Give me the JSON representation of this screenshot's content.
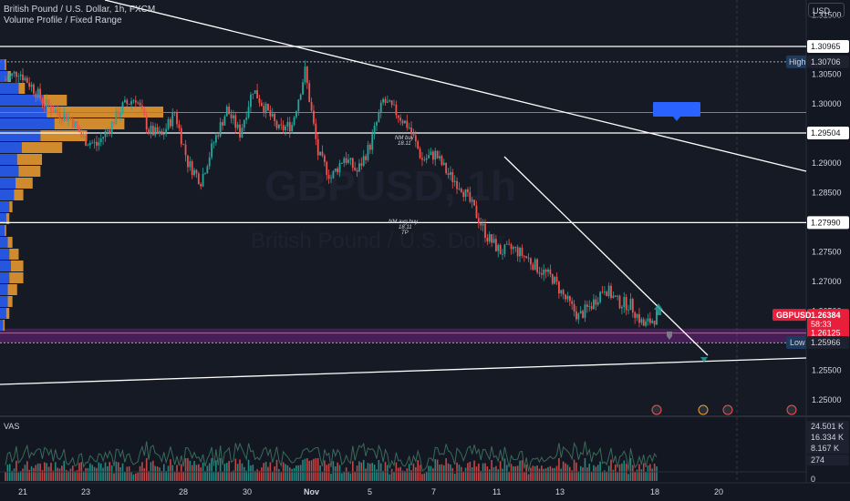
{
  "header": {
    "symbol_line": "British Pound / U.S. Dollar, 1h, FXCM",
    "indicator_line": "Volume Profile / Fixed Range",
    "currency": "USD",
    "watermark_symbol": "GBPUSD, 1h",
    "watermark_name": "British Pound / U.S. Dollar"
  },
  "price_axis": {
    "ticks": [
      "1.31500",
      "1.31000",
      "1.30500",
      "1.30000",
      "1.29500",
      "1.29000",
      "1.28500",
      "1.28000",
      "1.27500",
      "1.27000",
      "1.26500",
      "1.26000",
      "1.25500",
      "1.25000"
    ]
  },
  "labels": {
    "l1": "1.30965",
    "high_tag": "High",
    "high": "1.30706",
    "l2": "1.29504",
    "l3": "1.27990",
    "symbol_tag": "GBPUSD",
    "last_price": "1.26384",
    "countdown": "58:33",
    "l4": "1.26125",
    "low_tag": "Low",
    "low": "1.25966"
  },
  "annotations": {
    "nm_buy_1": "NM buy",
    "nm_buy_1_sub": "18.11",
    "nm_buy_2": "NM avg buy",
    "nm_buy_2_sub": "18.11",
    "nm_buy_2_tp": "TP"
  },
  "time_axis": {
    "labels": [
      "21",
      "23",
      "28",
      "30",
      "Nov",
      "5",
      "7",
      "11",
      "13",
      "18",
      "20"
    ]
  },
  "volume_pane": {
    "title": "VAS",
    "values": [
      "24.501 K",
      "16.334 K",
      "8.167 K",
      "274",
      "0"
    ]
  },
  "chart_data": {
    "type": "candlestick",
    "ylim": [
      1.2475,
      1.3175
    ],
    "horizontal_levels": [
      1.30965,
      1.29504,
      1.2799,
      1.26125
    ],
    "resistance_zone": 1.2985,
    "high": 1.30706,
    "low": 1.25966,
    "last": 1.26384,
    "close_path": [
      [
        0,
        1.304
      ],
      [
        6,
        1.3055
      ],
      [
        12,
        1.303
      ],
      [
        18,
        1.3
      ],
      [
        24,
        1.2985
      ],
      [
        30,
        1.2975
      ],
      [
        36,
        1.294
      ],
      [
        42,
        1.293
      ],
      [
        48,
        1.296
      ],
      [
        54,
        1.2995
      ],
      [
        60,
        1.301
      ],
      [
        66,
        1.2955
      ],
      [
        72,
        1.2945
      ],
      [
        78,
        1.2985
      ],
      [
        84,
        1.29
      ],
      [
        90,
        1.287
      ],
      [
        96,
        1.2935
      ],
      [
        102,
        1.299
      ],
      [
        108,
        1.295
      ],
      [
        114,
        1.3025
      ],
      [
        120,
        1.299
      ],
      [
        126,
        1.2955
      ],
      [
        132,
        1.2965
      ],
      [
        138,
        1.3055
      ],
      [
        144,
        1.2915
      ],
      [
        150,
        1.2875
      ],
      [
        156,
        1.291
      ],
      [
        162,
        1.2885
      ],
      [
        168,
        1.293
      ],
      [
        174,
        1.3005
      ],
      [
        180,
        1.2985
      ],
      [
        186,
        1.296
      ],
      [
        192,
        1.2905
      ],
      [
        198,
        1.2915
      ],
      [
        204,
        1.288
      ],
      [
        210,
        1.286
      ],
      [
        216,
        1.282
      ],
      [
        222,
        1.2775
      ],
      [
        228,
        1.275
      ],
      [
        234,
        1.2755
      ],
      [
        240,
        1.274
      ],
      [
        246,
        1.272
      ],
      [
        252,
        1.2705
      ],
      [
        258,
        1.267
      ],
      [
        264,
        1.264
      ],
      [
        270,
        1.266
      ],
      [
        276,
        1.269
      ],
      [
        282,
        1.2665
      ],
      [
        288,
        1.266
      ],
      [
        294,
        1.2625
      ],
      [
        300,
        1.264
      ]
    ],
    "volume_profile": {
      "price_bins": [
        1.3065,
        1.3045,
        1.3025,
        1.3005,
        1.2985,
        1.2965,
        1.2945,
        1.2925,
        1.2905,
        1.2885,
        1.2865,
        1.2845,
        1.2825,
        1.2805,
        1.2785,
        1.2765,
        1.2745,
        1.2725,
        1.2705,
        1.2685,
        1.2665,
        1.2645,
        1.2625
      ],
      "up_volume": [
        3,
        5,
        12,
        28,
        30,
        35,
        26,
        14,
        11,
        12,
        10,
        9,
        6,
        4,
        3,
        5,
        6,
        7,
        6,
        5,
        5,
        4,
        2
      ],
      "down_volume": [
        1,
        2,
        4,
        15,
        75,
        45,
        30,
        26,
        16,
        14,
        11,
        6,
        2,
        2,
        1,
        3,
        6,
        8,
        9,
        6,
        3,
        2,
        1
      ]
    }
  },
  "colors": {
    "up": "#26a69a",
    "down": "#ef5350",
    "vp_up": "#2962ff",
    "vp_down": "#f0a030",
    "label_blue": "#2962ff",
    "last_price_bg": "#e91e3b",
    "zone": "#9c27b0"
  }
}
